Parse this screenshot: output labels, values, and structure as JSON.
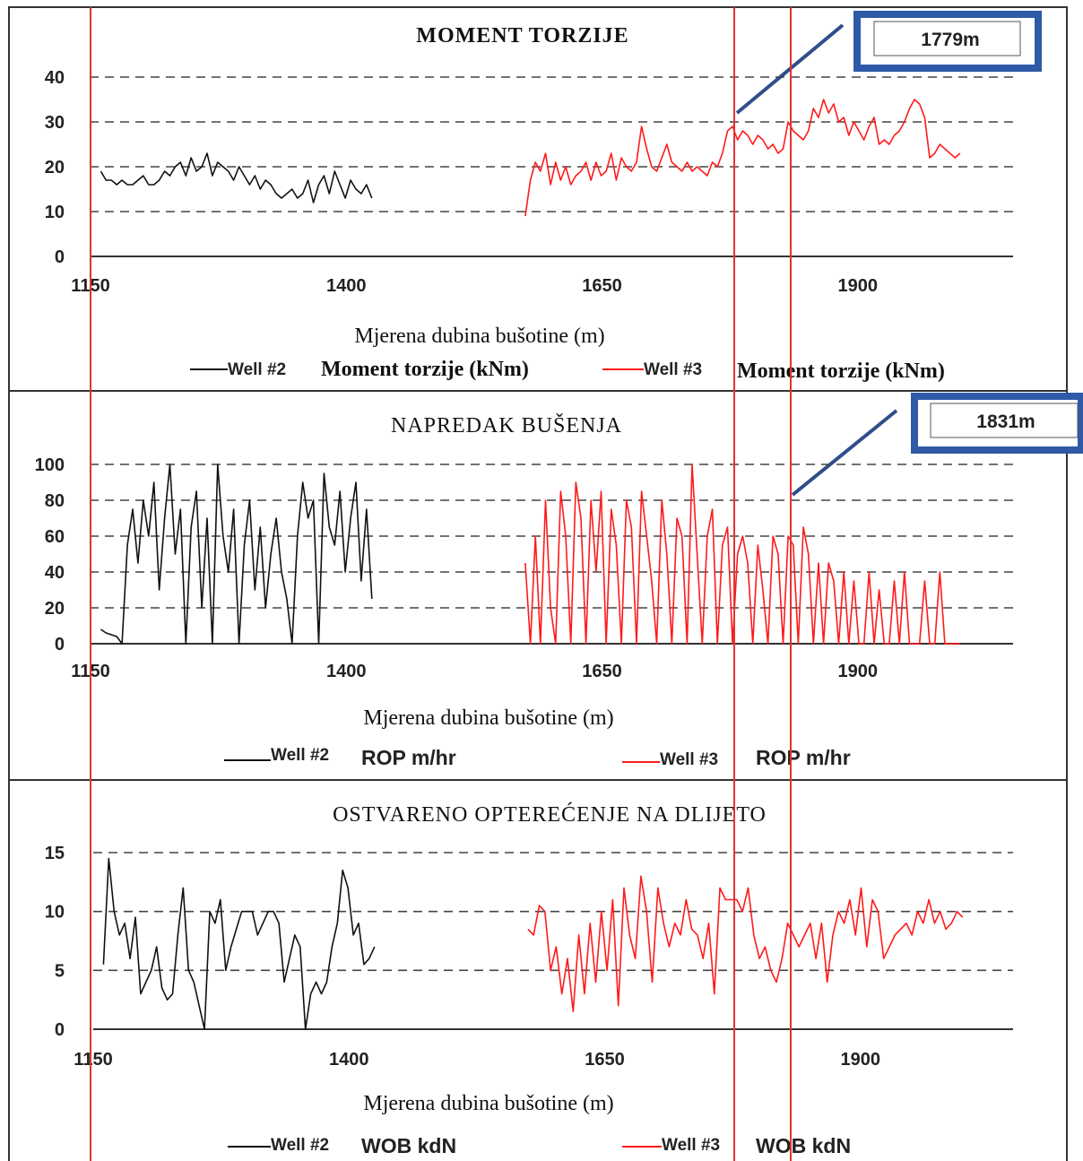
{
  "colors": {
    "well2": "#111111",
    "well3": "#ff1a1a",
    "grid": "#444444",
    "marker": "#e83030",
    "callout_border": "#2e5aa8",
    "callout_arrow": "#2f4e8a"
  },
  "chart_data": [
    {
      "type": "line",
      "title": "MOMENT TORZIJE",
      "xlabel": "Mjerena dubina bušotine (m)",
      "ylabel": "",
      "xlim": [
        1150,
        2050
      ],
      "ylim": [
        0,
        40
      ],
      "x_ticks": [
        "1150",
        "1400",
        "1650",
        "1900"
      ],
      "y_ticks": [
        "0",
        "10",
        "20",
        "30",
        "40"
      ],
      "grid": "horizontal-dashed",
      "legend_position": "bottom",
      "legend": [
        {
          "well": "Well #2",
          "label": "Moment torzije (kNm)"
        },
        {
          "well": "Well #3",
          "label": "Moment torzije (kNm)"
        }
      ],
      "callout": {
        "label": "1779m",
        "depth": 1779
      },
      "series": [
        {
          "name": "Well #2",
          "color": "#111111",
          "x_start": 1160,
          "x_end": 1425,
          "values": [
            19,
            17,
            17,
            16,
            17,
            16,
            16,
            17,
            18,
            16,
            16,
            17,
            19,
            18,
            20,
            21,
            18,
            22,
            19,
            20,
            23,
            18,
            21,
            20,
            19,
            17,
            20,
            18,
            16,
            18,
            15,
            17,
            16,
            14,
            13,
            14,
            15,
            13,
            14,
            17,
            12,
            16,
            18,
            14,
            19,
            16,
            13,
            17,
            15,
            14,
            16,
            13
          ]
        },
        {
          "name": "Well #3",
          "color": "#ff1a1a",
          "x_start": 1575,
          "x_end": 2000,
          "values": [
            9,
            17,
            21,
            19,
            23,
            16,
            21,
            17,
            20,
            16,
            18,
            19,
            21,
            17,
            21,
            18,
            19,
            23,
            17,
            22,
            20,
            19,
            21,
            29,
            24,
            20,
            19,
            22,
            25,
            21,
            20,
            19,
            21,
            19,
            20,
            19,
            18,
            21,
            20,
            23,
            28,
            29,
            26,
            28,
            27,
            25,
            27,
            26,
            24,
            25,
            23,
            24,
            30,
            28,
            27,
            26,
            28,
            33,
            31,
            35,
            32,
            34,
            30,
            31,
            27,
            30,
            28,
            26,
            29,
            31,
            25,
            26,
            25,
            27,
            28,
            30,
            33,
            35,
            34,
            31,
            22,
            23,
            25,
            24,
            23,
            22,
            23
          ]
        }
      ]
    },
    {
      "type": "line",
      "title": "NAPREDAK BUŠENJA",
      "xlabel": "Mjerena dubina bušotine (m)",
      "ylabel": "",
      "xlim": [
        1150,
        2050
      ],
      "ylim": [
        0,
        100
      ],
      "x_ticks": [
        "1150",
        "1400",
        "1650",
        "1900"
      ],
      "y_ticks": [
        "0",
        "20",
        "40",
        "60",
        "80",
        "100"
      ],
      "grid": "horizontal-dashed",
      "legend_position": "bottom",
      "legend": [
        {
          "well": "Well #2",
          "label": "ROP m/hr"
        },
        {
          "well": "Well #3",
          "label": "ROP m/hr"
        }
      ],
      "callout": {
        "label": "1831m",
        "depth": 1831
      },
      "series": [
        {
          "name": "Well #2",
          "color": "#111111",
          "x_start": 1160,
          "x_end": 1425,
          "values": [
            8,
            6,
            5,
            4,
            0,
            55,
            75,
            45,
            80,
            60,
            90,
            30,
            70,
            100,
            50,
            75,
            0,
            65,
            85,
            20,
            70,
            0,
            100,
            60,
            40,
            75,
            0,
            55,
            80,
            30,
            65,
            20,
            50,
            70,
            40,
            25,
            0,
            60,
            90,
            70,
            80,
            0,
            95,
            65,
            55,
            85,
            40,
            70,
            90,
            35,
            75,
            25
          ]
        },
        {
          "name": "Well #3",
          "color": "#ff1a1a",
          "x_start": 1575,
          "x_end": 2000,
          "values": [
            45,
            0,
            60,
            0,
            80,
            20,
            0,
            85,
            60,
            0,
            90,
            70,
            0,
            80,
            40,
            85,
            0,
            75,
            55,
            0,
            80,
            65,
            0,
            85,
            60,
            35,
            0,
            80,
            50,
            0,
            70,
            60,
            0,
            100,
            50,
            0,
            60,
            75,
            0,
            55,
            65,
            0,
            50,
            60,
            45,
            0,
            55,
            30,
            0,
            60,
            50,
            0,
            60,
            55,
            0,
            65,
            50,
            0,
            45,
            0,
            45,
            35,
            0,
            40,
            0,
            35,
            0,
            0,
            40,
            0,
            30,
            0,
            0,
            35,
            0,
            40,
            0,
            0,
            0,
            35,
            0,
            0,
            40,
            0,
            0,
            0,
            0
          ]
        }
      ]
    },
    {
      "type": "line",
      "title": "OSTVARENO OPTEREĆENJE NA DLIJETO",
      "xlabel": "Mjerena dubina bušotine (m)",
      "ylabel": "",
      "xlim": [
        1150,
        2050
      ],
      "ylim": [
        0,
        15
      ],
      "x_ticks": [
        "1150",
        "1400",
        "1650",
        "1900"
      ],
      "y_ticks": [
        "0",
        "5",
        "10",
        "15"
      ],
      "grid": "horizontal-dashed",
      "legend_position": "bottom",
      "legend": [
        {
          "well": "Well #2",
          "label": "WOB kdN"
        },
        {
          "well": "Well #3",
          "label": "WOB kdN"
        }
      ],
      "series": [
        {
          "name": "Well #2",
          "color": "#111111",
          "x_start": 1160,
          "x_end": 1425,
          "values": [
            5.5,
            14.5,
            10,
            8,
            9,
            6,
            9.5,
            3,
            4,
            5,
            7,
            3.5,
            2.5,
            3,
            8,
            12,
            5,
            4,
            2,
            0,
            10,
            9,
            11,
            5,
            7,
            8.5,
            10,
            10,
            10,
            8,
            9,
            10,
            10,
            9,
            4,
            6,
            8,
            7,
            0,
            3,
            4,
            3,
            4,
            7,
            9,
            13.5,
            12,
            8,
            9,
            5.5,
            6,
            7
          ]
        },
        {
          "name": "Well #3",
          "color": "#ff1a1a",
          "x_start": 1575,
          "x_end": 2000,
          "values": [
            8.5,
            8,
            10.5,
            10,
            5,
            7,
            3,
            6,
            1.5,
            8,
            3,
            9,
            4,
            10,
            5,
            11,
            2,
            12,
            8,
            6,
            13,
            10,
            4,
            12,
            9,
            7,
            9,
            8,
            11,
            8.5,
            8,
            6,
            9,
            3,
            12,
            11,
            11,
            11,
            10,
            12,
            8,
            6,
            7,
            5,
            4,
            6,
            9,
            8,
            7,
            8,
            9,
            6,
            9,
            4,
            8,
            10,
            9,
            11,
            8,
            12,
            7,
            11,
            10,
            6,
            7,
            8,
            8.5,
            9,
            8,
            10,
            9,
            11,
            9,
            10,
            8.5,
            9,
            10,
            9.5
          ]
        }
      ]
    }
  ]
}
